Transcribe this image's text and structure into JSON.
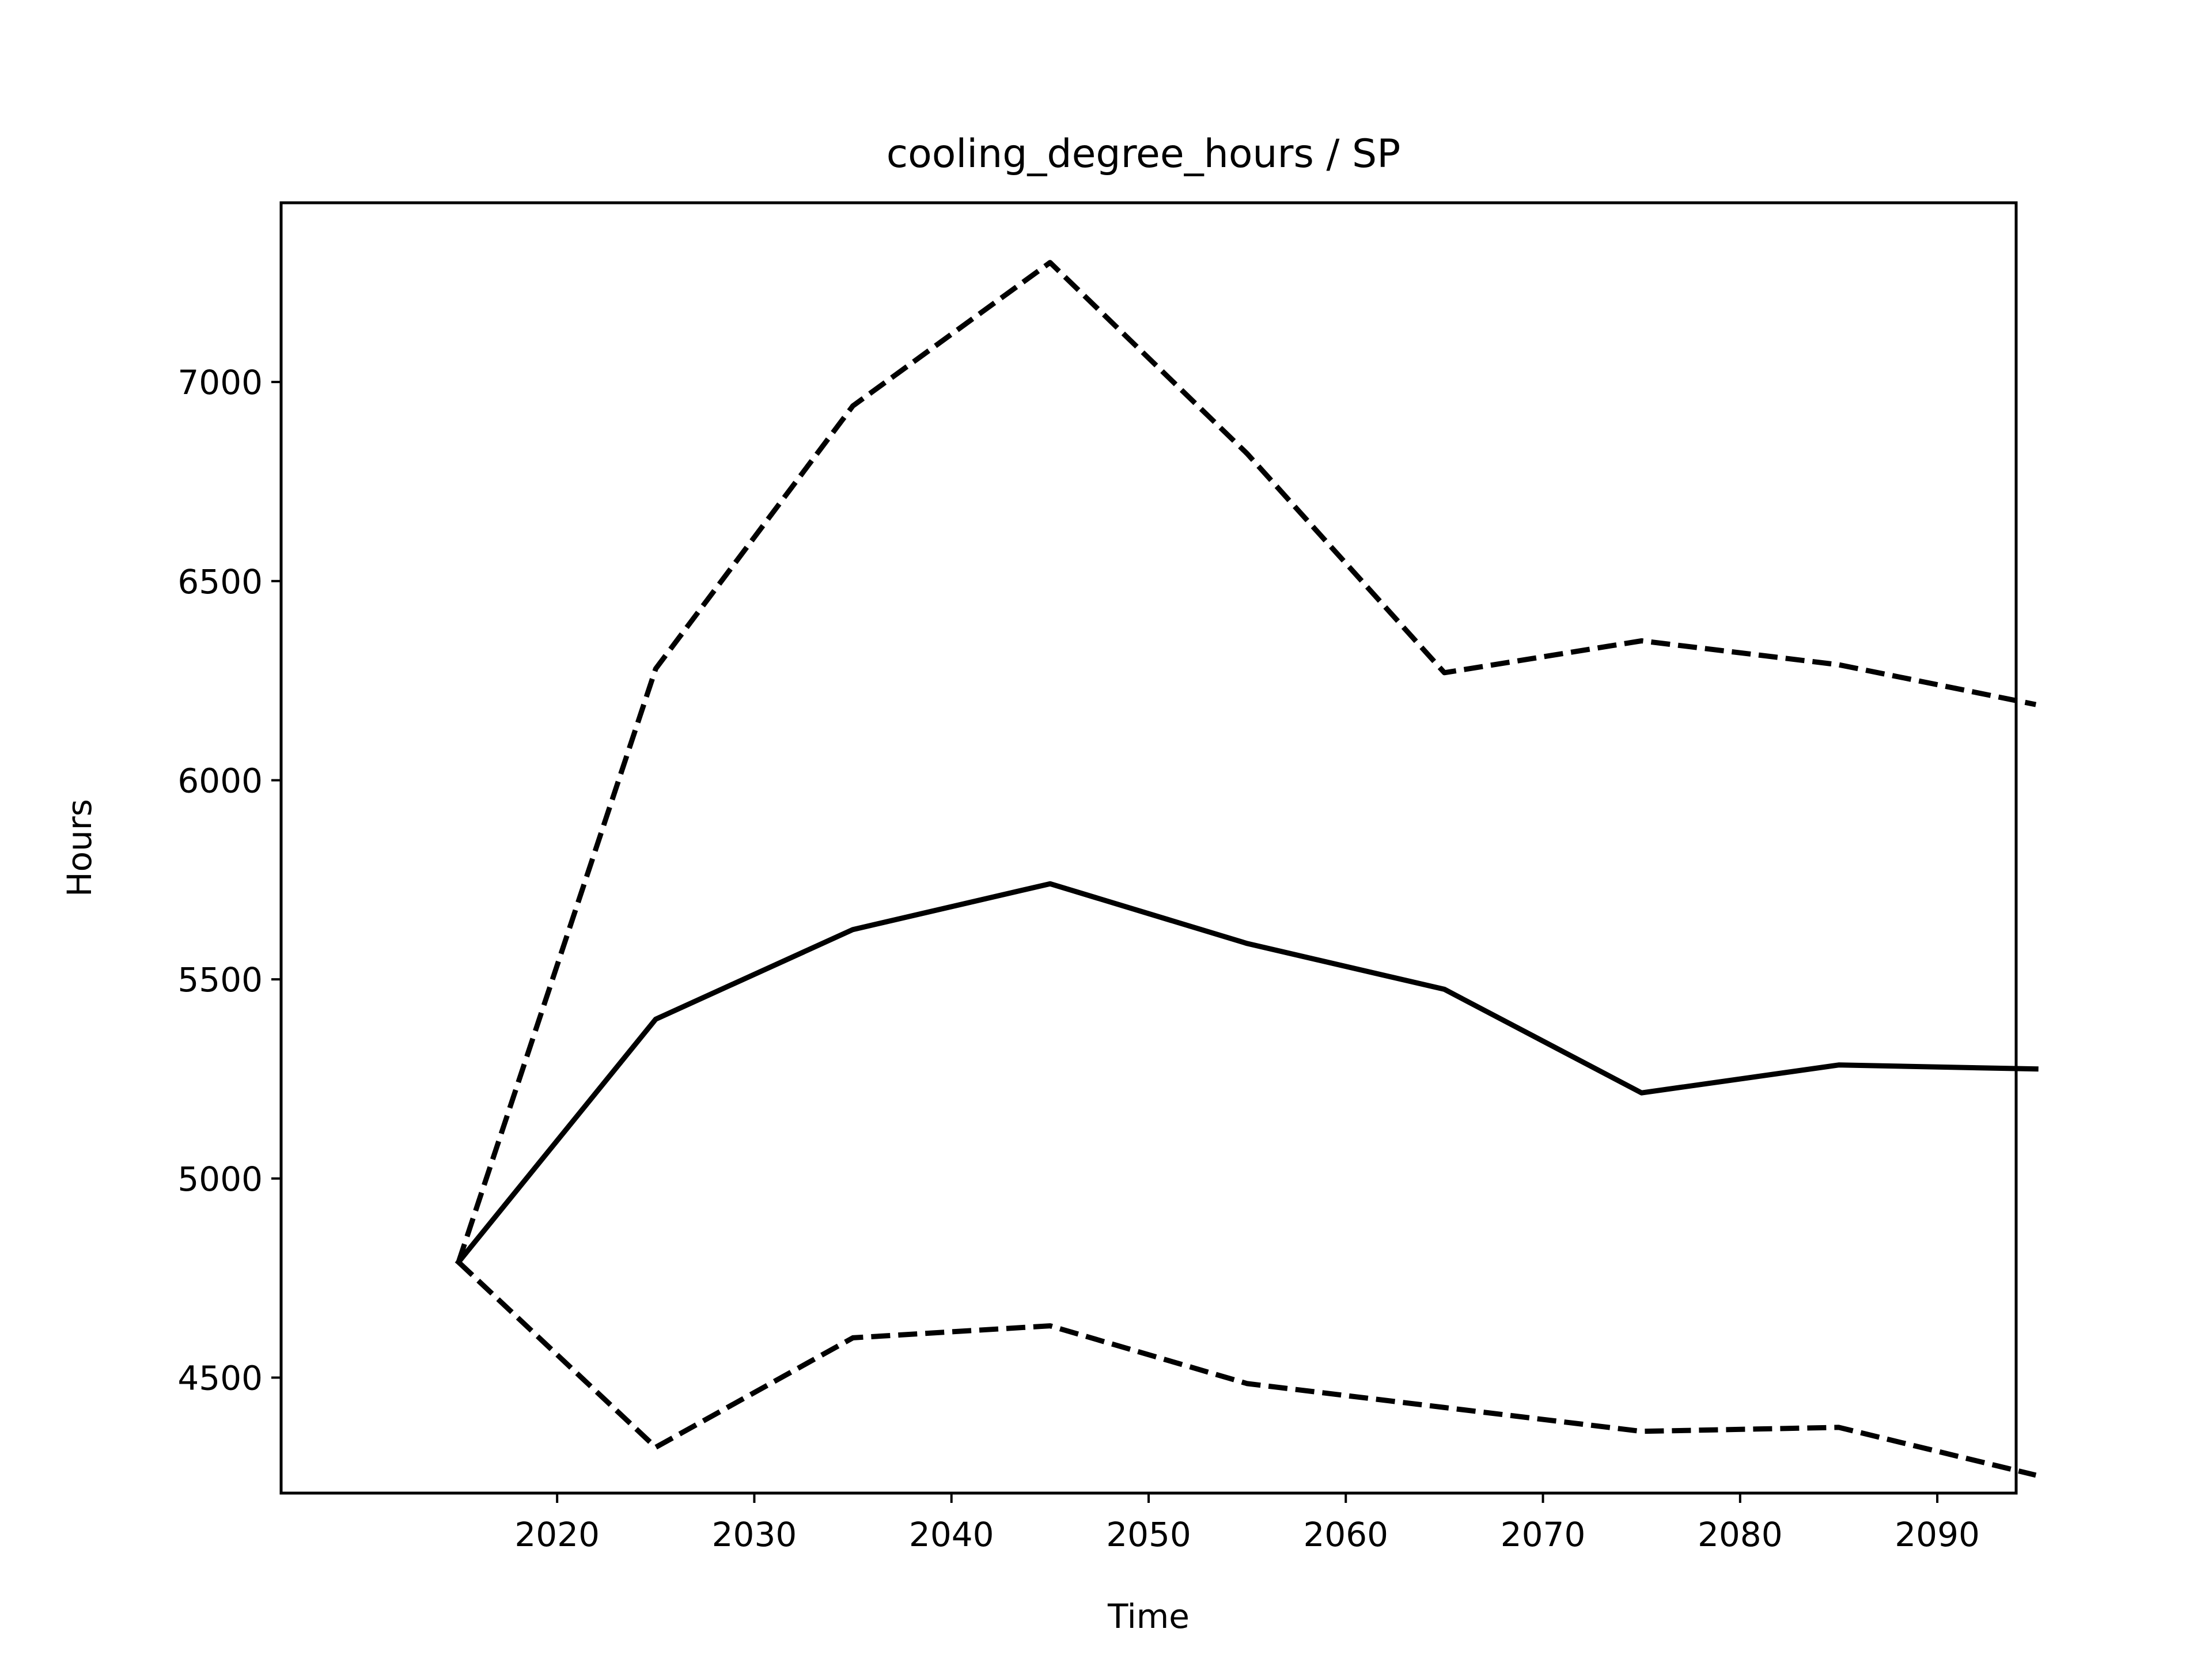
{
  "chart_data": {
    "type": "line",
    "title": "cooling_degree_hours / SP",
    "xlabel": "Time",
    "ylabel": "Hours",
    "x": [
      2015,
      2025,
      2035,
      2045,
      2055,
      2065,
      2075,
      2085,
      2095
    ],
    "xlim": [
      2006,
      2094
    ],
    "ylim": [
      4210,
      7450
    ],
    "xticks": [
      2020,
      2030,
      2040,
      2050,
      2060,
      2070,
      2080,
      2090
    ],
    "yticks": [
      4500,
      5000,
      5500,
      6000,
      6500,
      7000
    ],
    "grid": false,
    "series": [
      {
        "style": "solid",
        "color": "#000000",
        "values": [
          4790,
          5400,
          5625,
          5740,
          5590,
          5475,
          5215,
          5285,
          5275
        ]
      },
      {
        "style": "dashed",
        "color": "#000000",
        "values": [
          4790,
          6280,
          6940,
          7300,
          6820,
          6270,
          6350,
          6290,
          6190
        ]
      },
      {
        "style": "dashed",
        "color": "#000000",
        "values": [
          4790,
          4325,
          4600,
          4630,
          4485,
          4425,
          4365,
          4375,
          4255
        ]
      }
    ]
  }
}
